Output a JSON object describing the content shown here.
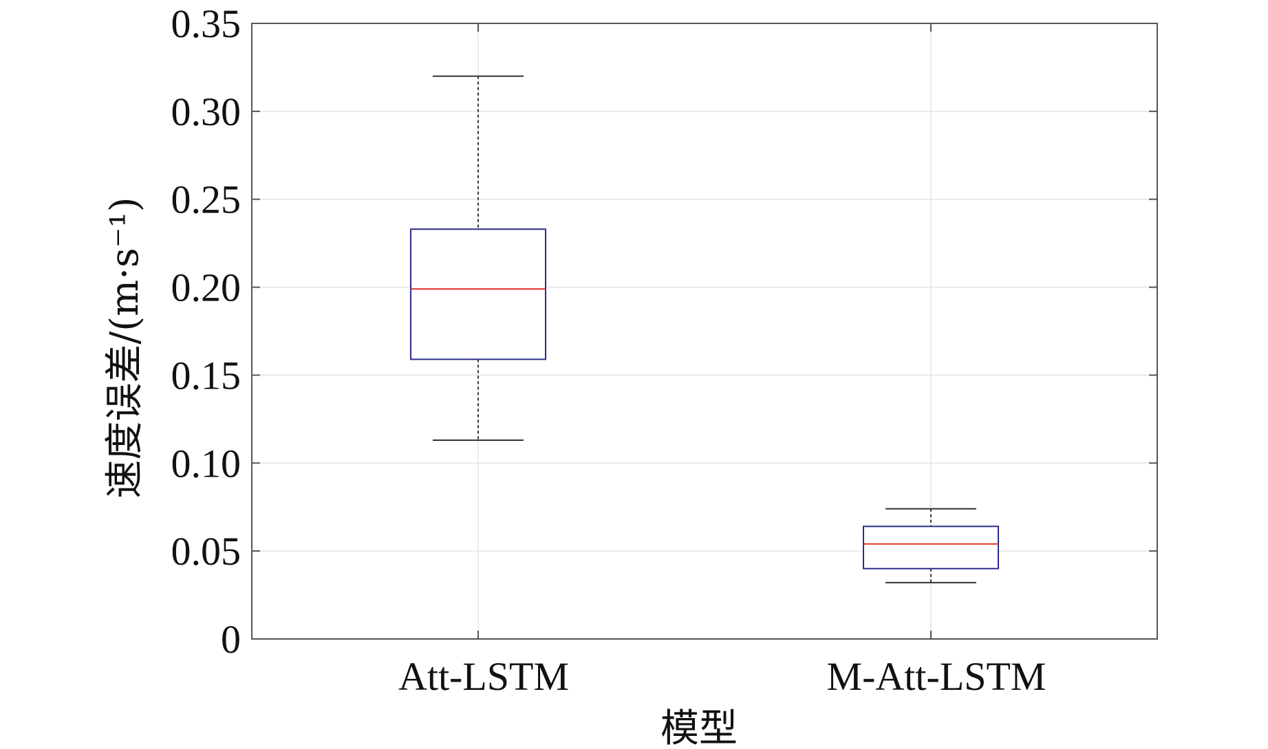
{
  "chart_data": {
    "type": "boxplot",
    "xlabel": "模型",
    "ylabel": "速度误差/(m·s⁻¹)",
    "ylim": [
      0,
      0.35
    ],
    "yticks": [
      "0",
      "0.05",
      "0.10",
      "0.15",
      "0.20",
      "0.25",
      "0.30",
      "0.35"
    ],
    "grid": true,
    "categories": [
      "Att-LSTM",
      "M-Att-LSTM"
    ],
    "boxes": [
      {
        "category": "Att-LSTM",
        "whisker_low": 0.113,
        "q1": 0.159,
        "median": 0.199,
        "q3": 0.233,
        "whisker_high": 0.32
      },
      {
        "category": "M-Att-LSTM",
        "whisker_low": 0.032,
        "q1": 0.04,
        "median": 0.054,
        "q3": 0.064,
        "whisker_high": 0.074
      }
    ],
    "colors": {
      "box": "#2b2a8c",
      "median": "#e8322a",
      "whisker": "#333333",
      "axis": "#555555",
      "grid": "#e4e4e4"
    }
  }
}
